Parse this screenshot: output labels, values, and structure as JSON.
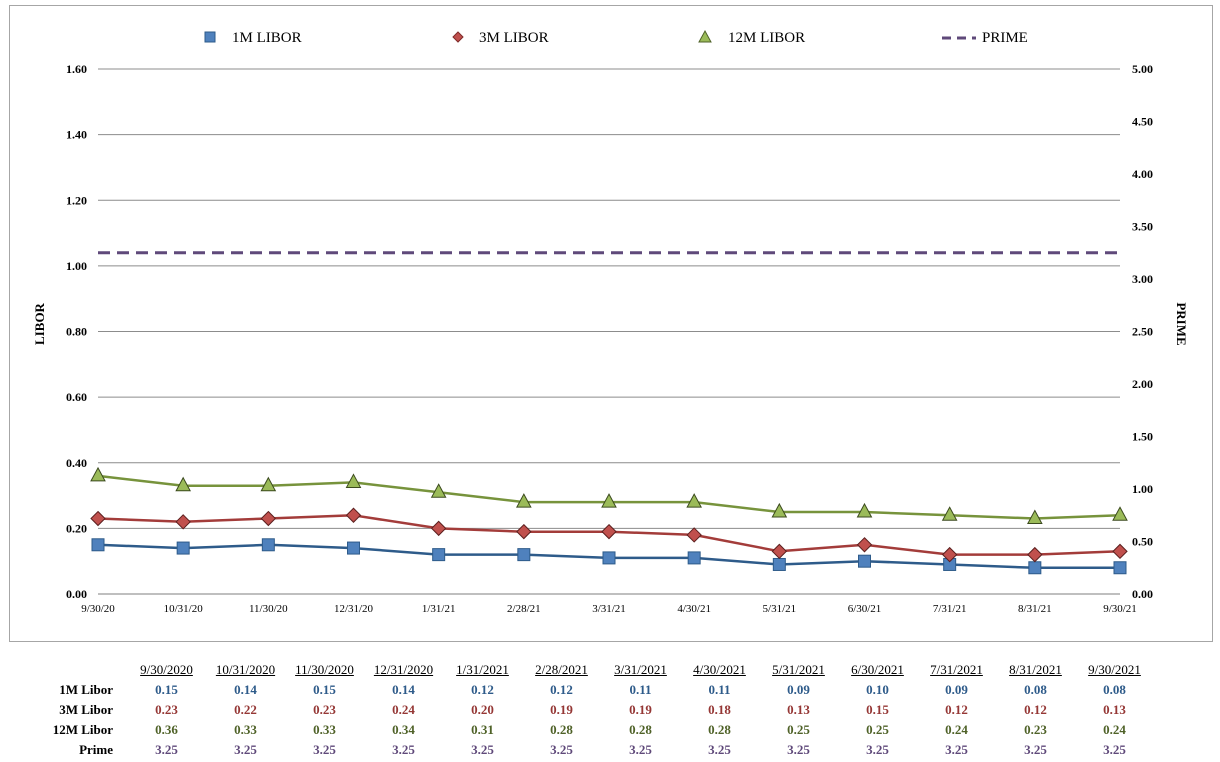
{
  "legend": {
    "m1": "1M LIBOR",
    "m3": "3M LIBOR",
    "m12": "12M LIBOR",
    "prime": "PRIME"
  },
  "axes": {
    "left_title": "LIBOR",
    "right_title": "PRIME",
    "left_ticks": [
      "0.00",
      "0.20",
      "0.40",
      "0.60",
      "0.80",
      "1.00",
      "1.20",
      "1.40",
      "1.60"
    ],
    "right_ticks": [
      "0.00",
      "0.50",
      "1.00",
      "1.50",
      "2.00",
      "2.50",
      "3.00",
      "3.50",
      "4.00",
      "4.50",
      "5.00"
    ],
    "x_ticks": [
      "9/30/20",
      "10/31/20",
      "11/30/20",
      "12/31/20",
      "1/31/21",
      "2/28/21",
      "3/31/21",
      "4/30/21",
      "5/31/21",
      "6/30/21",
      "7/31/21",
      "8/31/21",
      "9/30/21"
    ]
  },
  "chart_data": {
    "type": "line",
    "x": [
      "9/30/2020",
      "10/31/2020",
      "11/30/2020",
      "12/31/2020",
      "1/31/2021",
      "2/28/2021",
      "3/31/2021",
      "4/30/2021",
      "5/31/2021",
      "6/30/2021",
      "7/31/2021",
      "8/31/2021",
      "9/30/2021"
    ],
    "ylim_left": [
      0,
      1.6
    ],
    "ylim_right": [
      0,
      5
    ],
    "grid": true,
    "legend_position": "top",
    "series": [
      {
        "name": "1M LIBOR",
        "axis": "left",
        "color": "#4f81bd",
        "line_color": "#2e5b8a",
        "marker": "square",
        "values": [
          0.15,
          0.14,
          0.15,
          0.14,
          0.12,
          0.12,
          0.11,
          0.11,
          0.09,
          0.1,
          0.09,
          0.08,
          0.08
        ]
      },
      {
        "name": "3M LIBOR",
        "axis": "left",
        "color": "#c0504d",
        "line_color": "#a33c3a",
        "marker": "diamond",
        "values": [
          0.23,
          0.22,
          0.23,
          0.24,
          0.2,
          0.19,
          0.19,
          0.18,
          0.13,
          0.15,
          0.12,
          0.12,
          0.13
        ]
      },
      {
        "name": "12M LIBOR",
        "axis": "left",
        "color": "#9bbb59",
        "line_color": "#77933c",
        "marker": "triangle",
        "values": [
          0.36,
          0.33,
          0.33,
          0.34,
          0.31,
          0.28,
          0.28,
          0.28,
          0.25,
          0.25,
          0.24,
          0.23,
          0.24
        ]
      },
      {
        "name": "PRIME",
        "axis": "right",
        "color": "#5f497a",
        "line_color": "#5f497a",
        "marker": "none",
        "dashed": true,
        "values": [
          3.25,
          3.25,
          3.25,
          3.25,
          3.25,
          3.25,
          3.25,
          3.25,
          3.25,
          3.25,
          3.25,
          3.25,
          3.25
        ]
      }
    ]
  },
  "table": {
    "headers": [
      "9/30/2020",
      "10/31/2020",
      "11/30/2020",
      "12/31/2020",
      "1/31/2021",
      "2/28/2021",
      "3/31/2021",
      "4/30/2021",
      "5/31/2021",
      "6/30/2021",
      "7/31/2021",
      "8/31/2021",
      "9/30/2021"
    ],
    "rows": [
      {
        "label": "1M Libor",
        "values": [
          "0.15",
          "0.14",
          "0.15",
          "0.14",
          "0.12",
          "0.12",
          "0.11",
          "0.11",
          "0.09",
          "0.10",
          "0.09",
          "0.08",
          "0.08"
        ]
      },
      {
        "label": "3M Libor",
        "values": [
          "0.23",
          "0.22",
          "0.23",
          "0.24",
          "0.20",
          "0.19",
          "0.19",
          "0.18",
          "0.13",
          "0.15",
          "0.12",
          "0.12",
          "0.13"
        ]
      },
      {
        "label": "12M Libor",
        "values": [
          "0.36",
          "0.33",
          "0.33",
          "0.34",
          "0.31",
          "0.28",
          "0.28",
          "0.28",
          "0.25",
          "0.25",
          "0.24",
          "0.23",
          "0.24"
        ]
      },
      {
        "label": "Prime",
        "values": [
          "3.25",
          "3.25",
          "3.25",
          "3.25",
          "3.25",
          "3.25",
          "3.25",
          "3.25",
          "3.25",
          "3.25",
          "3.25",
          "3.25",
          "3.25"
        ]
      }
    ]
  }
}
